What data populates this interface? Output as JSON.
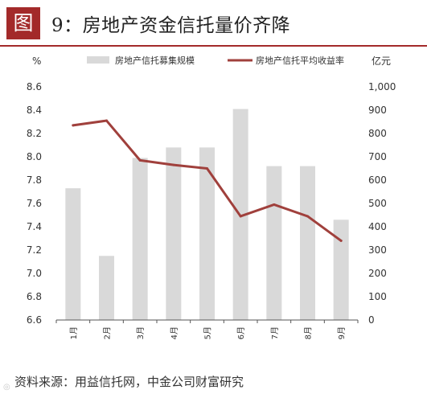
{
  "figure": {
    "tag": "图",
    "title": "9：房地产资金信托量价齐降",
    "source": "资料来源：用益信托网，中金公司财富研究"
  },
  "chart_data": {
    "type": "bar+line",
    "categories": [
      "1月",
      "2月",
      "3月",
      "4月",
      "5月",
      "6月",
      "7月",
      "8月",
      "9月"
    ],
    "left_axis": {
      "label": "%",
      "ylim": [
        6.6,
        8.6
      ],
      "ticks": [
        "6.6",
        "6.8",
        "7.0",
        "7.2",
        "7.4",
        "7.6",
        "7.8",
        "8.0",
        "8.2",
        "8.4",
        "8.6"
      ]
    },
    "right_axis": {
      "label": "亿元",
      "ylim": [
        0,
        1000
      ],
      "ticks": [
        "0",
        "100",
        "200",
        "300",
        "400",
        "500",
        "600",
        "700",
        "800",
        "900",
        "1,000"
      ]
    },
    "series": [
      {
        "name": "房地产信托募集规模",
        "type": "bar",
        "axis": "right",
        "color": "#d9d9d9",
        "values": [
          565,
          275,
          695,
          740,
          740,
          905,
          660,
          660,
          430
        ]
      },
      {
        "name": "房地产信托平均收益率",
        "type": "line",
        "axis": "left",
        "color": "#a0403c",
        "values": [
          8.27,
          8.31,
          7.97,
          7.93,
          7.9,
          7.49,
          7.59,
          7.49,
          7.28
        ]
      }
    ],
    "grid": false,
    "legend": "top"
  }
}
